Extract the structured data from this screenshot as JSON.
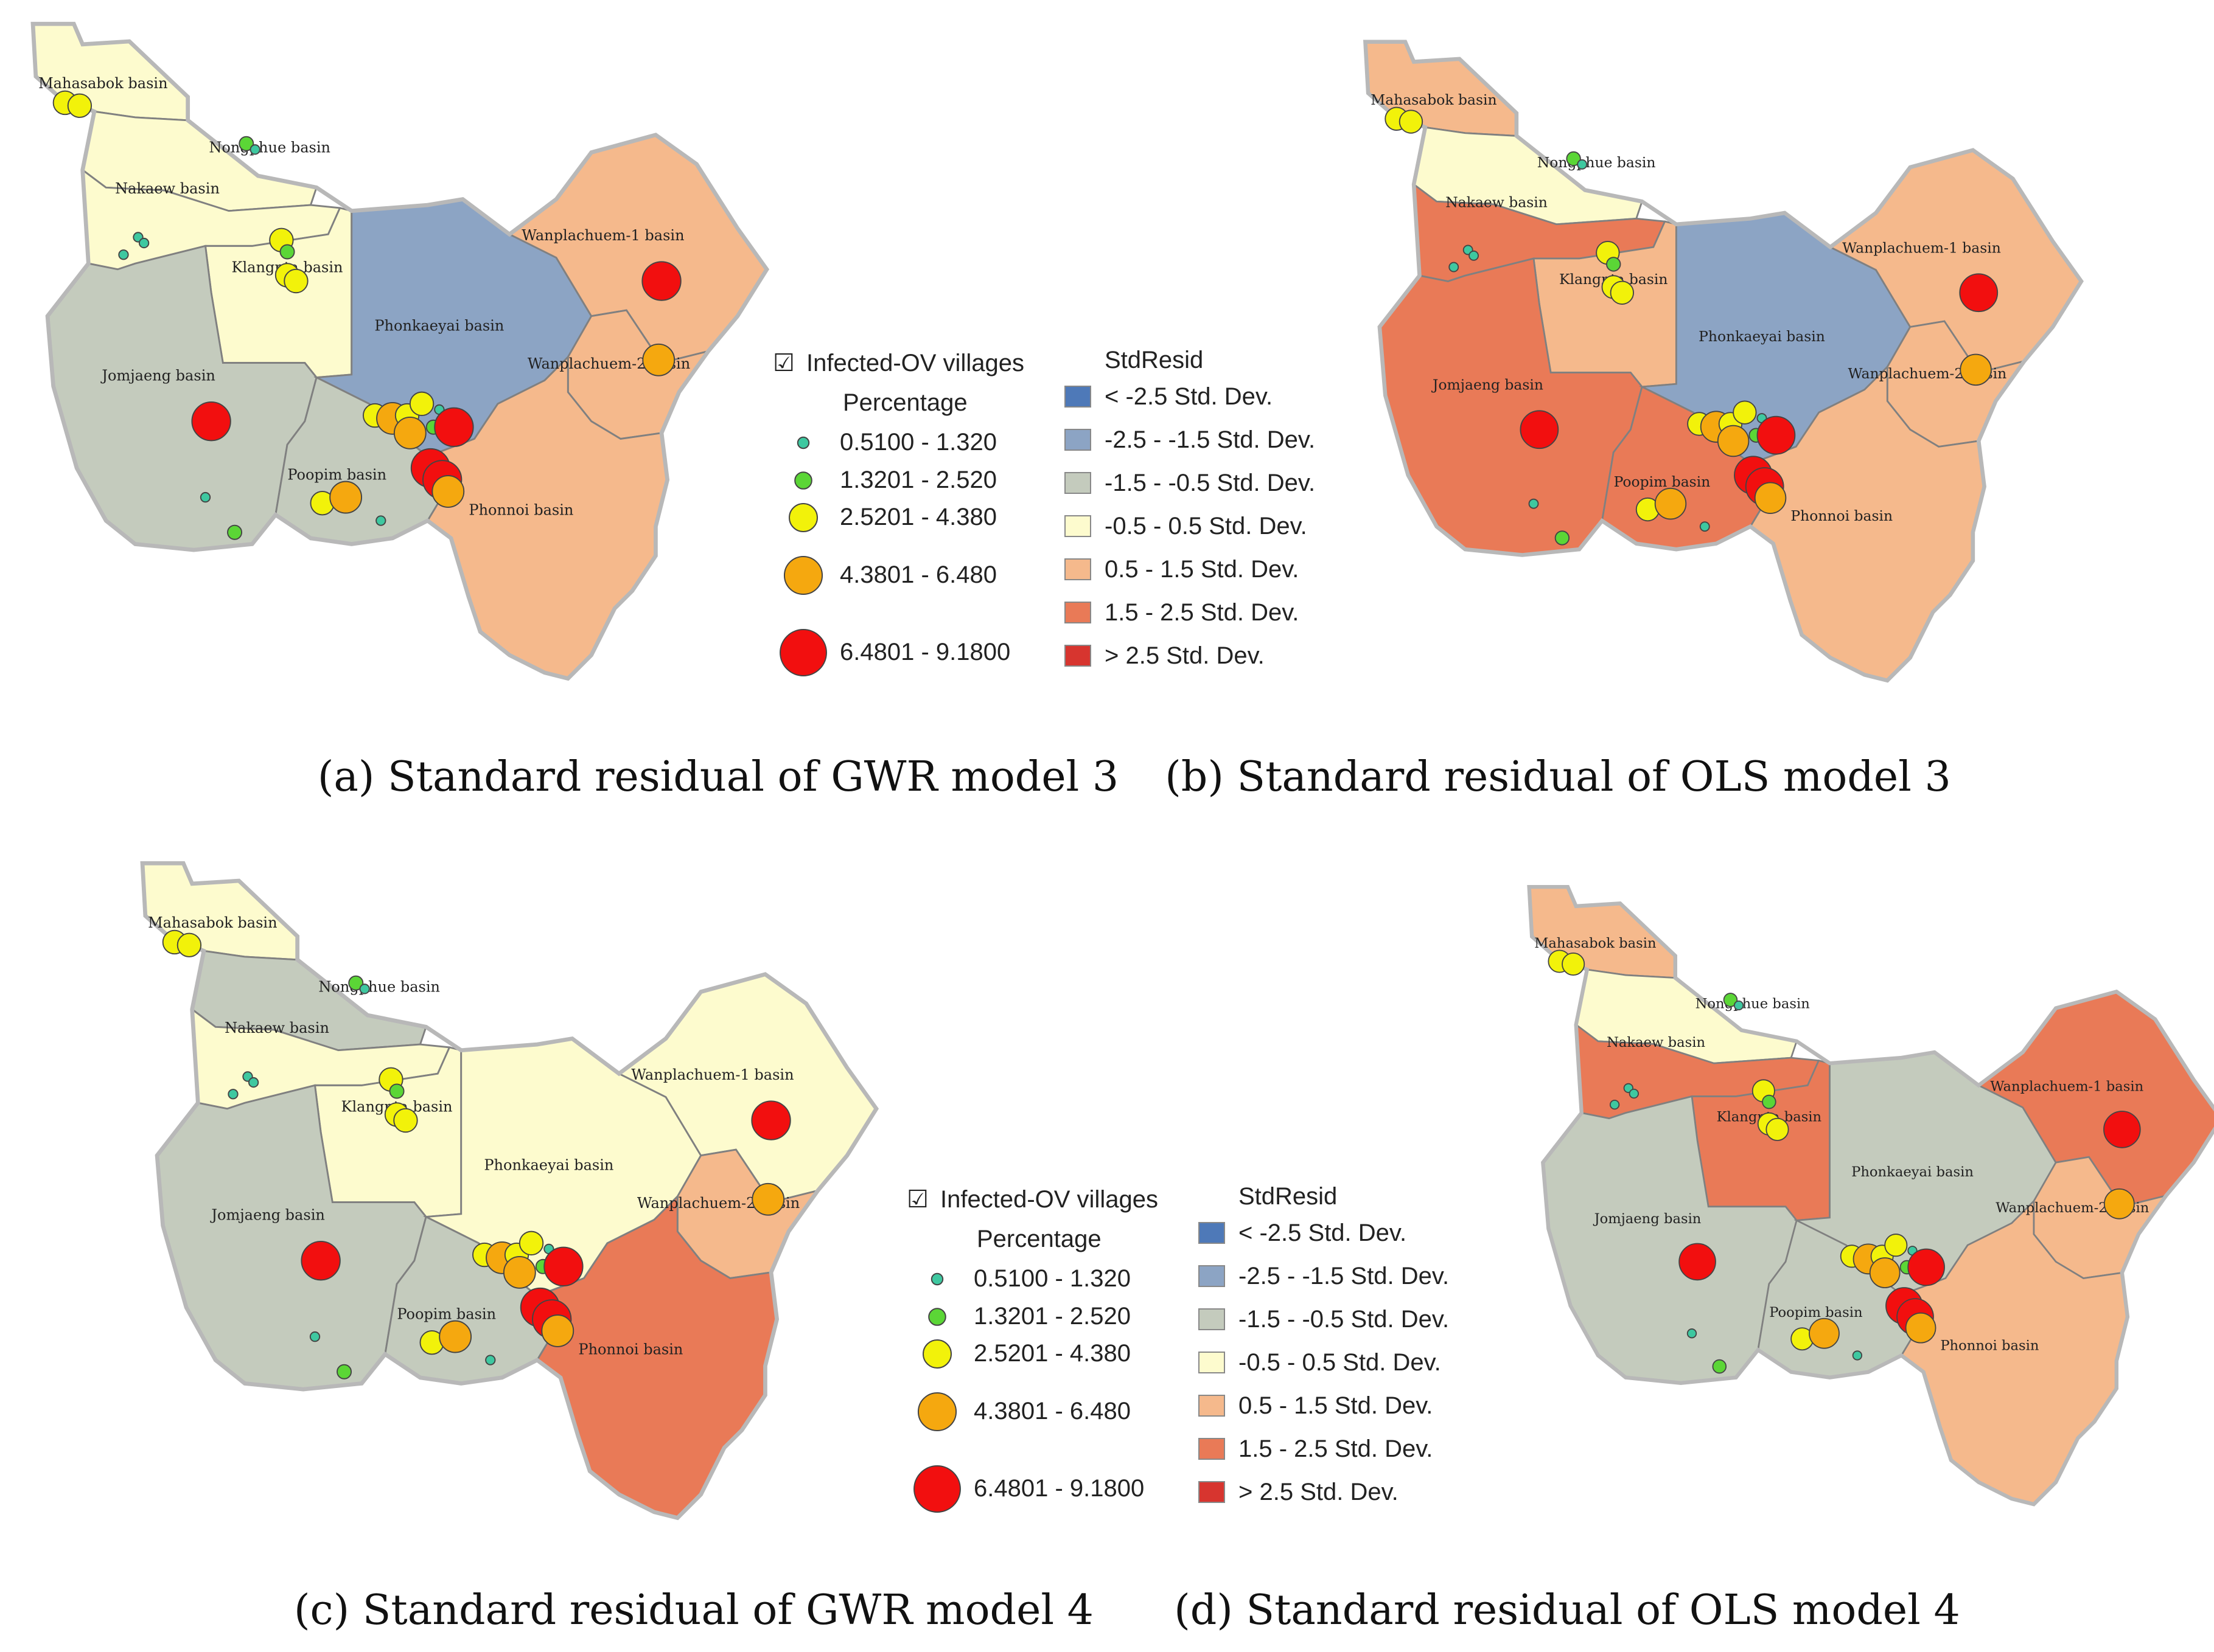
{
  "panels": [
    {
      "id": "a",
      "caption": "(a) Standard residual of GWR model 3",
      "classes": {
        "mahasarakham": 3,
        "nongphue": 3,
        "nakaew": 3,
        "klangnta": 3,
        "jomjaeng": 2,
        "phonkaeyai": 1,
        "poopim": 2,
        "phonnoi": 4,
        "wanplachuem1": 4,
        "wanplachuem2": 4
      },
      "show_legend": true
    },
    {
      "id": "b",
      "caption": "(b) Standard residual of OLS model 3",
      "classes": {
        "mahasarakham": 4,
        "nongphue": 3,
        "nakaew": 5,
        "klangnta": 4,
        "jomjaeng": 5,
        "phonkaeyai": 1,
        "poopim": 5,
        "phonnoi": 4,
        "wanplachuem1": 4,
        "wanplachuem2": 4
      },
      "show_legend": false
    },
    {
      "id": "c",
      "caption": "(c) Standard residual of GWR model 4",
      "classes": {
        "mahasarakham": 3,
        "nongphue": 2,
        "nakaew": 3,
        "klangnta": 3,
        "jomjaeng": 2,
        "phonkaeyai": 3,
        "poopim": 2,
        "phonnoi": 5,
        "wanplachuem1": 3,
        "wanplachuem2": 4
      },
      "show_legend": true
    },
    {
      "id": "d",
      "caption": "(d) Standard residual of OLS model 4",
      "classes": {
        "mahasarakham": 4,
        "nongphue": 3,
        "nakaew": 5,
        "klangnta": 5,
        "jomjaeng": 2,
        "phonkaeyai": 2,
        "poopim": 2,
        "phonnoi": 4,
        "wanplachuem1": 5,
        "wanplachuem2": 4
      },
      "show_legend": false
    }
  ],
  "basins": [
    {
      "key": "mahasarakham",
      "label": "Mahasabok basin"
    },
    {
      "key": "nongphue",
      "label": "Nongphue basin"
    },
    {
      "key": "nakaew",
      "label": "Nakaew basin"
    },
    {
      "key": "klangnta",
      "label": "Klangnta basin"
    },
    {
      "key": "jomjaeng",
      "label": "Jomjaeng basin"
    },
    {
      "key": "phonkaeyai",
      "label": "Phonkaeyai basin"
    },
    {
      "key": "poopim",
      "label": "Poopim basin"
    },
    {
      "key": "phonnoi",
      "label": "Phonnoi basin"
    },
    {
      "key": "wanplachuem1",
      "label": "Wanplachuem-1 basin"
    },
    {
      "key": "wanplachuem2",
      "label": "Wanplachuem-2 basin"
    }
  ],
  "legend": {
    "layer_title": "Infected-OV villages",
    "field_title": "Percentage",
    "checkbox": "☑",
    "point_classes": [
      {
        "label": "0.5100 - 1.320",
        "color": "#3ec8a0"
      },
      {
        "label": "1.3201 - 2.520",
        "color": "#5bd636"
      },
      {
        "label": "2.5201 - 4.380",
        "color": "#f2f20a"
      },
      {
        "label": "4.3801 - 6.480",
        "color": "#f5a80f"
      },
      {
        "label": "6.4801 - 9.1800",
        "color": "#f20f0f"
      }
    ],
    "resid_title": "StdResid",
    "resid_classes": [
      {
        "label": "< -2.5 Std. Dev.",
        "color": "#4e79b8"
      },
      {
        "label": "-2.5 - -1.5 Std. Dev.",
        "color": "#8ca4c4"
      },
      {
        "label": "-1.5 - -0.5 Std. Dev.",
        "color": "#c4cbbd"
      },
      {
        "label": "-0.5 - 0.5 Std. Dev.",
        "color": "#fdfbce"
      },
      {
        "label": "0.5 - 1.5 Std. Dev.",
        "color": "#f5b98c"
      },
      {
        "label": "1.5 - 2.5 Std. Dev.",
        "color": "#e97a57"
      },
      {
        "label": "> 2.5 Std. Dev.",
        "color": "#d7352f"
      }
    ]
  }
}
